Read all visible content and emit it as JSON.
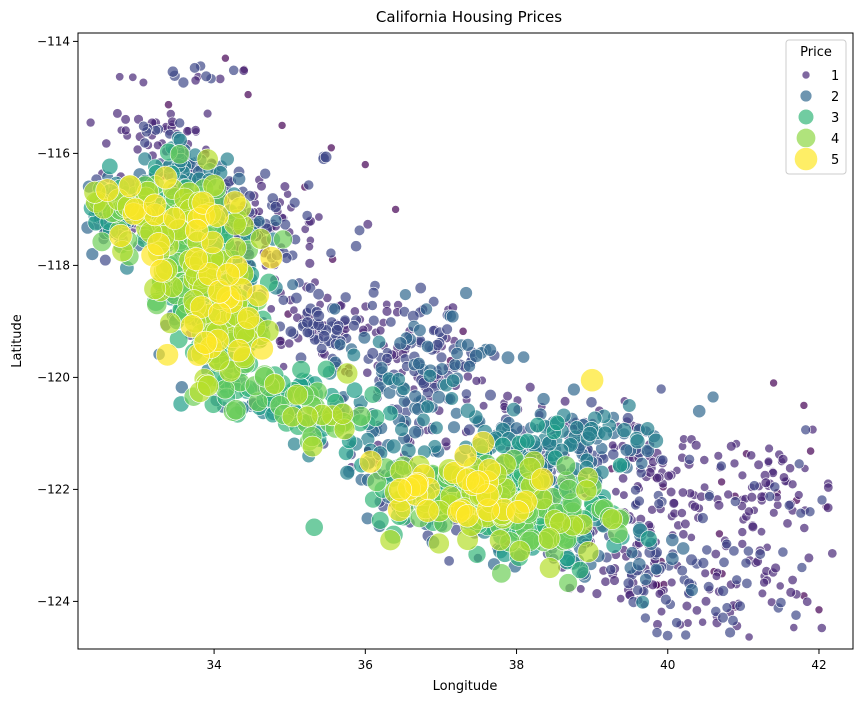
{
  "chart_data": {
    "type": "scatter",
    "title": "California Housing Prices",
    "xlabel": "Longitude",
    "ylabel": "Latitude",
    "xlim": [
      32.2,
      42.45
    ],
    "ylim": [
      -124.85,
      -113.85
    ],
    "y_inverted": true,
    "xticks": [
      34,
      36,
      38,
      40,
      42
    ],
    "yticks": [
      -114,
      -116,
      -118,
      -120,
      -122,
      -124
    ],
    "grid": false,
    "legend": {
      "title": "Price",
      "placement": "top-right",
      "entries": [
        {
          "label": "1",
          "color": "#482878",
          "size": 1
        },
        {
          "label": "2",
          "color": "#31688e",
          "size": 2
        },
        {
          "label": "3",
          "color": "#35b779",
          "size": 3
        },
        {
          "label": "4",
          "color": "#8fd744",
          "size": 4
        },
        {
          "label": "5",
          "color": "#fde725",
          "size": 5
        }
      ]
    },
    "palette": [
      "#440154",
      "#482878",
      "#3e4989",
      "#31688e",
      "#26828e",
      "#1f9e89",
      "#35b779",
      "#6ece58",
      "#b5de2b",
      "#fde725"
    ],
    "clusters": [
      {
        "x": 33.2,
        "y": -117.0,
        "sx": 0.55,
        "sy": 0.35,
        "n": 260,
        "vmin": 1.0,
        "vmax": 5.0
      },
      {
        "x": 33.9,
        "y": -118.1,
        "sx": 0.35,
        "sy": 0.55,
        "n": 240,
        "vmin": 1.5,
        "vmax": 5.0
      },
      {
        "x": 34.2,
        "y": -119.2,
        "sx": 0.25,
        "sy": 0.45,
        "n": 120,
        "vmin": 2.5,
        "vmax": 5.0
      },
      {
        "x": 34.6,
        "y": -120.3,
        "sx": 0.45,
        "sy": 0.2,
        "n": 60,
        "vmin": 2.0,
        "vmax": 4.5
      },
      {
        "x": 35.3,
        "y": -120.7,
        "sx": 0.5,
        "sy": 0.3,
        "n": 60,
        "vmin": 2.0,
        "vmax": 4.5
      },
      {
        "x": 37.4,
        "y": -122.1,
        "sx": 0.6,
        "sy": 0.35,
        "n": 320,
        "vmin": 1.5,
        "vmax": 5.0
      },
      {
        "x": 38.4,
        "y": -122.6,
        "sx": 0.5,
        "sy": 0.35,
        "n": 220,
        "vmin": 1.0,
        "vmax": 4.5
      },
      {
        "x": 38.6,
        "y": -121.2,
        "sx": 0.7,
        "sy": 0.4,
        "n": 220,
        "vmin": 1.0,
        "vmax": 3.0
      },
      {
        "x": 36.8,
        "y": -119.8,
        "sx": 0.5,
        "sy": 0.5,
        "n": 180,
        "vmin": 1.0,
        "vmax": 2.5
      },
      {
        "x": 35.4,
        "y": -119.0,
        "sx": 0.5,
        "sy": 0.4,
        "n": 120,
        "vmin": 1.0,
        "vmax": 2.0
      },
      {
        "x": 34.5,
        "y": -117.3,
        "sx": 0.5,
        "sy": 0.45,
        "n": 140,
        "vmin": 1.0,
        "vmax": 2.0
      },
      {
        "x": 33.7,
        "y": -116.3,
        "sx": 0.35,
        "sy": 0.3,
        "n": 70,
        "vmin": 1.0,
        "vmax": 3.0
      },
      {
        "x": 33.2,
        "y": -115.6,
        "sx": 0.3,
        "sy": 0.2,
        "n": 40,
        "vmin": 1.0,
        "vmax": 1.6
      },
      {
        "x": 33.6,
        "y": -114.6,
        "sx": 0.5,
        "sy": 0.1,
        "n": 15,
        "vmin": 1.0,
        "vmax": 2.0
      },
      {
        "x": 40.2,
        "y": -122.0,
        "sx": 0.9,
        "sy": 0.6,
        "n": 150,
        "vmin": 1.0,
        "vmax": 1.6
      },
      {
        "x": 40.5,
        "y": -123.8,
        "sx": 0.6,
        "sy": 0.5,
        "n": 90,
        "vmin": 1.0,
        "vmax": 1.8
      },
      {
        "x": 41.4,
        "y": -122.6,
        "sx": 0.45,
        "sy": 0.8,
        "n": 50,
        "vmin": 1.0,
        "vmax": 1.6
      },
      {
        "x": 39.4,
        "y": -123.4,
        "sx": 0.4,
        "sy": 0.35,
        "n": 60,
        "vmin": 1.0,
        "vmax": 2.5
      },
      {
        "x": 36.3,
        "y": -121.3,
        "sx": 0.4,
        "sy": 0.3,
        "n": 50,
        "vmin": 1.0,
        "vmax": 3.0
      }
    ],
    "outliers": [
      {
        "x": 34.15,
        "y": -114.3,
        "v": 1.0
      },
      {
        "x": 34.4,
        "y": -114.5,
        "v": 1.0
      },
      {
        "x": 34.45,
        "y": -114.95,
        "v": 1.0
      },
      {
        "x": 34.9,
        "y": -115.5,
        "v": 1.0
      },
      {
        "x": 35.55,
        "y": -115.9,
        "v": 1.0
      },
      {
        "x": 36.0,
        "y": -116.2,
        "v": 1.0
      },
      {
        "x": 35.2,
        "y": -116.6,
        "v": 1.0
      },
      {
        "x": 36.4,
        "y": -117.0,
        "v": 1.0
      },
      {
        "x": 41.4,
        "y": -120.1,
        "v": 1.0
      },
      {
        "x": 41.8,
        "y": -120.5,
        "v": 1.0
      },
      {
        "x": 40.6,
        "y": -120.35,
        "v": 2.0
      },
      {
        "x": 39.0,
        "y": -120.05,
        "v": 5.0
      },
      {
        "x": 33.4,
        "y": -118.5,
        "v": 3.0
      },
      {
        "x": 33.3,
        "y": -118.3,
        "v": 4.0
      },
      {
        "x": 42.0,
        "y": -124.15,
        "v": 1.0
      },
      {
        "x": 41.8,
        "y": -123.9,
        "v": 1.0
      },
      {
        "x": 40.9,
        "y": -124.1,
        "v": 1.0
      },
      {
        "x": 37.8,
        "y": -123.5,
        "v": 4.0
      }
    ]
  }
}
